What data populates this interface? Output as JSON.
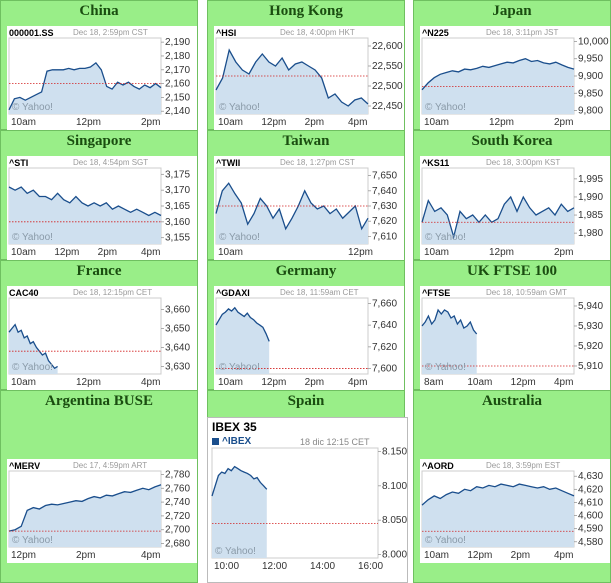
{
  "markets": [
    {
      "title": "China",
      "symbol": "000001.SS",
      "stamp": "Dec 18, 2:59pm CST",
      "yticks": [
        "2,190",
        "2,180",
        "2,170",
        "2,160",
        "2,150",
        "2,140"
      ],
      "xticks": [
        "10am",
        "12pm",
        "2pm"
      ],
      "watermark": "© Yahoo!",
      "chart_data": {
        "type": "area",
        "ylim": [
          2138,
          2193
        ],
        "prev_close": 2160,
        "values": [
          2141,
          2149,
          2150,
          2148,
          2150,
          2152,
          2154,
          2169,
          2170,
          2170,
          2170,
          2171,
          2170,
          2171,
          2171,
          2172,
          2175,
          2170,
          2158,
          2156,
          2161,
          2159,
          2161,
          2158,
          2156,
          2159,
          2157,
          2160,
          2157
        ]
      }
    },
    {
      "title": "Hong Kong",
      "symbol": "^HSI",
      "stamp": "Dec 18, 4:00pm HKT",
      "yticks": [
        "22,600",
        "22,550",
        "22,500",
        "22,450"
      ],
      "xticks": [
        "10am",
        "12pm",
        "2pm",
        "4pm"
      ],
      "watermark": "© Yahoo!",
      "chart_data": {
        "type": "area",
        "ylim": [
          22430,
          22620
        ],
        "prev_close": 22525,
        "values": [
          22490,
          22520,
          22590,
          22560,
          22540,
          22530,
          22560,
          22580,
          22560,
          22550,
          22570,
          22540,
          22555,
          22560,
          22550,
          22540,
          22520,
          22470,
          22480,
          22460,
          22450,
          22465,
          22470,
          22455
        ]
      }
    },
    {
      "title": "Japan",
      "symbol": "^N225",
      "stamp": "Dec 18, 3:11pm JST",
      "yticks": [
        "10,000",
        "9,950",
        "9,900",
        "9,850",
        "9,800"
      ],
      "xticks": [
        "10am",
        "12pm",
        "2pm"
      ],
      "watermark": "© Yahoo!",
      "chart_data": {
        "type": "area",
        "ylim": [
          9790,
          10010
        ],
        "prev_close": 9870,
        "values": [
          9860,
          9880,
          9895,
          9905,
          9910,
          9915,
          9912,
          9920,
          9918,
          9922,
          9928,
          9925,
          9930,
          9935,
          9940,
          9938,
          9945,
          9950,
          9942,
          9945,
          9938,
          9935,
          9940,
          9932,
          9925,
          9920
        ]
      }
    },
    {
      "title": "Singapore",
      "symbol": "^STI",
      "stamp": "Dec 18, 4:54pm SGT",
      "yticks": [
        "3,175",
        "3,170",
        "3,165",
        "3,160",
        "3,155"
      ],
      "xticks": [
        "10am",
        "12pm",
        "2pm",
        "4pm"
      ],
      "watermark": "© Yahoo!",
      "chart_data": {
        "type": "area",
        "ylim": [
          3153,
          3177
        ],
        "prev_close": 3160,
        "values": [
          3171,
          3170,
          3171,
          3169,
          3170,
          3168,
          3168,
          3167,
          3169,
          3167,
          3166,
          3168,
          3166,
          3165,
          3166,
          3165,
          3166,
          3164,
          3165,
          3164,
          3163,
          3164,
          3163,
          3162,
          3163,
          3162
        ]
      }
    },
    {
      "title": "Taiwan",
      "symbol": "^TWII",
      "stamp": "Dec 18, 1:27pm CST",
      "yticks": [
        "7,650",
        "7,640",
        "7,630",
        "7,620",
        "7,610"
      ],
      "xticks": [
        "10am",
        "12pm"
      ],
      "watermark": "© Yahoo!",
      "chart_data": {
        "type": "area",
        "ylim": [
          7605,
          7655
        ],
        "prev_close": 7630,
        "values": [
          7625,
          7640,
          7645,
          7638,
          7632,
          7618,
          7625,
          7635,
          7630,
          7622,
          7628,
          7615,
          7622,
          7630,
          7640,
          7632,
          7628,
          7630,
          7625,
          7628,
          7622,
          7626,
          7630,
          7615,
          7622
        ]
      }
    },
    {
      "title": "South Korea",
      "symbol": "^KS11",
      "stamp": "Dec 18, 3:00pm KST",
      "yticks": [
        "1,995",
        "1,990",
        "1,985",
        "1,980"
      ],
      "xticks": [
        "10am",
        "12pm",
        "2pm"
      ],
      "watermark": "© Yahoo!",
      "chart_data": {
        "type": "area",
        "ylim": [
          1977,
          1998
        ],
        "prev_close": 1983,
        "values": [
          1983,
          1989,
          1986,
          1987,
          1985,
          1979,
          1986,
          1984,
          1985,
          1983,
          1985,
          1983,
          1984,
          1988,
          1990,
          1986,
          1990,
          1987,
          1985,
          1986,
          1987,
          1985,
          1988,
          1986,
          1987
        ]
      }
    },
    {
      "title": "France",
      "symbol": "CAC40",
      "stamp": "Dec 18, 12:15pm CET",
      "yticks": [
        "3,660",
        "3,650",
        "3,640",
        "3,630"
      ],
      "xticks": [
        "10am",
        "12pm",
        "4pm"
      ],
      "watermark": "© Yahoo!",
      "chart_data": {
        "type": "area",
        "xfrac": 0.32,
        "ylim": [
          3626,
          3666
        ],
        "prev_close": 3638,
        "values": [
          3648,
          3650,
          3652,
          3648,
          3649,
          3645,
          3646,
          3642,
          3643,
          3640,
          3638,
          3636,
          3637,
          3633,
          3631,
          3629,
          3630
        ]
      }
    },
    {
      "title": "Germany",
      "symbol": "^GDAXI",
      "stamp": "Dec 18, 11:59am CET",
      "yticks": [
        "7,660",
        "7,640",
        "7,620",
        "7,600"
      ],
      "xticks": [
        "10am",
        "12pm",
        "2pm",
        "4pm"
      ],
      "watermark": "© Yahoo!",
      "chart_data": {
        "type": "area",
        "xfrac": 0.35,
        "ylim": [
          7595,
          7665
        ],
        "prev_close": 7600,
        "values": [
          7640,
          7645,
          7650,
          7652,
          7655,
          7653,
          7656,
          7652,
          7650,
          7648,
          7651,
          7647,
          7645,
          7642,
          7640,
          7638,
          7632,
          7625
        ]
      }
    },
    {
      "title": "UK FTSE 100",
      "symbol": "^FTSE",
      "stamp": "Dec 18, 10:59am GMT",
      "yticks": [
        "5,940",
        "5,930",
        "5,920",
        "5,910"
      ],
      "xticks": [
        "8am",
        "10am",
        "12pm",
        "4pm"
      ],
      "watermark": "© Yahoo!",
      "chart_data": {
        "type": "area",
        "xfrac": 0.36,
        "ylim": [
          5906,
          5944
        ],
        "prev_close": 5910,
        "values": [
          5930,
          5932,
          5935,
          5931,
          5933,
          5938,
          5936,
          5938,
          5937,
          5934,
          5935,
          5931,
          5933,
          5929,
          5930,
          5932,
          5928,
          5926
        ]
      }
    },
    {
      "title": "Argentina BUSE",
      "symbol": "^MERV",
      "stamp": "Dec 17, 4:59pm ART",
      "yticks": [
        "2,780",
        "2,760",
        "2,740",
        "2,720",
        "2,700",
        "2,680"
      ],
      "xticks": [
        "12pm",
        "2pm",
        "4pm"
      ],
      "watermark": "© Yahoo!",
      "chart_data": {
        "type": "area",
        "ylim": [
          2675,
          2785
        ],
        "prev_close": 2698,
        "values": [
          2698,
          2700,
          2705,
          2728,
          2732,
          2730,
          2735,
          2737,
          2736,
          2738,
          2740,
          2742,
          2741,
          2745,
          2748,
          2746,
          2750,
          2749,
          2752,
          2755,
          2754,
          2757,
          2760,
          2758,
          2762,
          2765
        ]
      }
    },
    {
      "title": "Spain"
    },
    {
      "title": "Australia",
      "symbol": "^AORD",
      "stamp": "Dec 18, 3:59pm EST",
      "yticks": [
        "4,630",
        "4,620",
        "4,610",
        "4,600",
        "4,590",
        "4,580"
      ],
      "xticks": [
        "10am",
        "12pm",
        "2pm",
        "4pm"
      ],
      "watermark": "© Yahoo!",
      "chart_data": {
        "type": "area",
        "ylim": [
          4576,
          4634
        ],
        "prev_close": 4588,
        "values": [
          4608,
          4612,
          4615,
          4613,
          4616,
          4618,
          4617,
          4620,
          4619,
          4622,
          4621,
          4623,
          4622,
          4624,
          4623,
          4622,
          4624,
          4623,
          4622,
          4621,
          4622,
          4620,
          4621,
          4619,
          4617,
          4615
        ]
      }
    }
  ],
  "ibex": {
    "title": "IBEX 35",
    "symbol": "^IBEX",
    "stamp": "18 dic 12:15 CET",
    "yticks": [
      "8.150",
      "8.100",
      "8.050",
      "8.000"
    ],
    "xticks": [
      "10:00",
      "12:00",
      "14:00",
      "16:00"
    ],
    "watermark": "© Yahoo!",
    "chart_data": {
      "type": "area",
      "xfrac": 0.33,
      "ylim": [
        7995,
        8155
      ],
      "prev_close": 8045,
      "values": [
        8085,
        8100,
        8115,
        8120,
        8118,
        8125,
        8122,
        8128,
        8125,
        8122,
        8120,
        8118,
        8115,
        8110,
        8112,
        8105,
        8100,
        8095
      ]
    }
  },
  "colors": {
    "panel": "#99ee88",
    "title": "#1a4d10",
    "line": "#1a4e8c",
    "fill": "#cfe0ef",
    "prev": "#d22020"
  }
}
